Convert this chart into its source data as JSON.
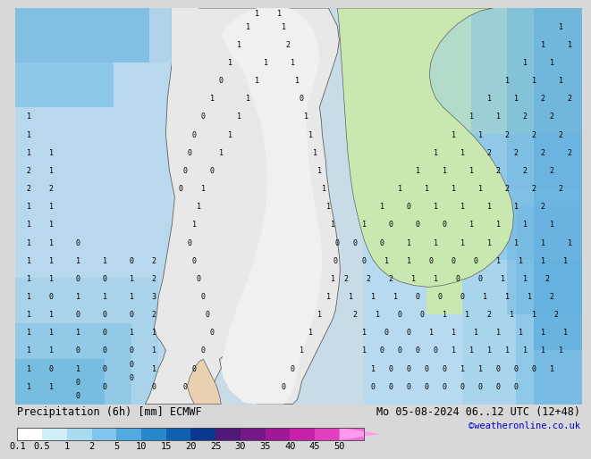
{
  "title_left": "Precipitation (6h) [mm] ECMWF",
  "title_right": "Mo 05-08-2024 06..12 UTC (12+48)",
  "credit": "©weatheronline.co.uk",
  "colorbar_tick_labels": [
    "0.1",
    "0.5",
    "1",
    "2",
    "5",
    "10",
    "15",
    "20",
    "25",
    "30",
    "35",
    "40",
    "45",
    "50"
  ],
  "colorbar_colors": [
    "#ffffff",
    "#d0eef8",
    "#a8daf2",
    "#80c6ec",
    "#50aae0",
    "#2888cc",
    "#1060b0",
    "#083890",
    "#501878",
    "#781888",
    "#a01898",
    "#c820a8",
    "#e040c0",
    "#f070d8",
    "#ff99ee"
  ],
  "bg_color": "#d8d8d8",
  "map_bg_color": "#c8dce8",
  "land_color": "#e8e8e8",
  "green_land_color": "#c8e8b0",
  "ocean_left_color": "#a0cce0",
  "ocean_right_color": "#b0d8ec",
  "precip_light_color": "#c8eaf8",
  "precip_med_color": "#a0d0f0",
  "text_color": "#000000",
  "label_fontsize": 8.5,
  "tick_fontsize": 7.5,
  "credit_color": "#0000cc",
  "numbers_color": "#000000",
  "numbers_size": 6.0
}
